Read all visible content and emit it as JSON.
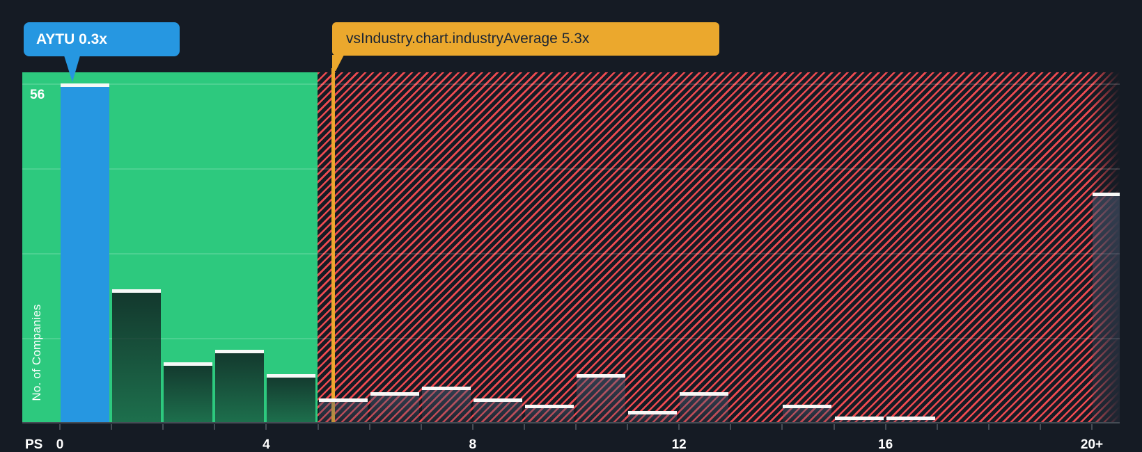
{
  "callouts": {
    "company": {
      "label": "AYTU 0.3x",
      "company": "AYTU",
      "value_x": 0.3
    },
    "industry": {
      "label": "vsIndustry.chart.industryAverage 5.3x",
      "value_x": 5.3
    }
  },
  "y_axis": {
    "max_label": "56",
    "title": "No. of Companies"
  },
  "x_axis": {
    "unit_label": "PS",
    "tick_labels": [
      {
        "value": 0,
        "label": "0"
      },
      {
        "value": 4,
        "label": "4"
      },
      {
        "value": 8,
        "label": "8"
      },
      {
        "value": 12,
        "label": "12"
      },
      {
        "value": 16,
        "label": "16"
      },
      {
        "value": 20,
        "label": "20+"
      }
    ]
  },
  "chart_data": {
    "type": "bar",
    "title": "Price-to-Sales ratio distribution vs industry",
    "xlabel": "PS",
    "ylabel": "No. of Companies",
    "categories": [
      "0-1",
      "1-2",
      "2-3",
      "3-4",
      "4-5",
      "5-6",
      "6-7",
      "7-8",
      "8-9",
      "9-10",
      "10-11",
      "11-12",
      "12-13",
      "13-14",
      "14-15",
      "15-16",
      "16-17",
      "17-18",
      "18-19",
      "19-20",
      "20+"
    ],
    "values": [
      56,
      22,
      10,
      12,
      8,
      4,
      5,
      6,
      4,
      3,
      8,
      2,
      5,
      0,
      3,
      1,
      1,
      0,
      0,
      0,
      38
    ],
    "highlight_bin_index": 0,
    "company_marker": {
      "name": "AYTU",
      "x": 0.3
    },
    "industry_average_x": 5.3,
    "green_zone_x_range": [
      0,
      5
    ],
    "hatch_zone_x_range": [
      5,
      20.5
    ],
    "ylim": [
      0,
      56
    ],
    "gridline_step": 14,
    "grid": true,
    "legend": false,
    "zones": {
      "below_average_fill": "green",
      "above_average_fill": "red-diagonal-hatch"
    }
  },
  "colors": {
    "background": "#151B24",
    "green_zone": "#2DC97E",
    "company_blue": "#2697E1",
    "industry_orange": "#EBA82D",
    "hatch_red": "#EF4B51",
    "bar_cap_white": "#F7F8F7",
    "axis_gray": "#454C55",
    "orange_text": "#1D2633"
  }
}
